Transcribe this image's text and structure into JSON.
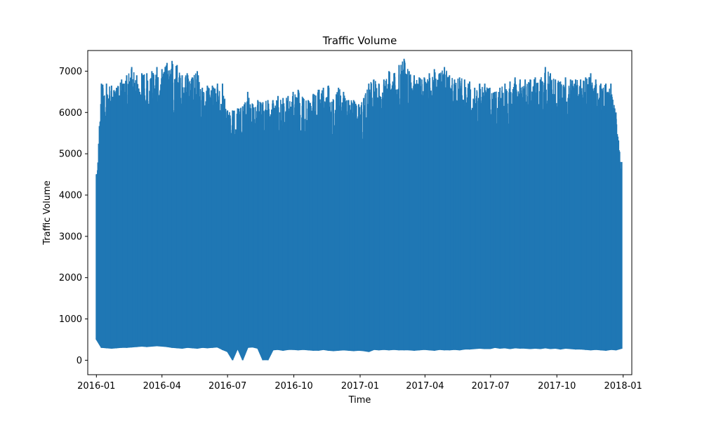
{
  "chart_data": {
    "type": "line",
    "title": "Traffic Volume",
    "xlabel": "Time",
    "ylabel": "Traffic Volume",
    "xlim": [
      "2015-12-20",
      "2018-01-13"
    ],
    "ylim": [
      -350,
      7500
    ],
    "grid": false,
    "x_ticks": [
      "2016-01",
      "2016-04",
      "2016-07",
      "2016-10",
      "2017-01",
      "2017-04",
      "2017-07",
      "2017-10",
      "2018-01"
    ],
    "y_ticks": [
      0,
      1000,
      2000,
      3000,
      4000,
      5000,
      6000,
      7000
    ],
    "series": [
      {
        "color": "#1f77b4",
        "sampling": "hourly readings, shown as approximate weekly envelope",
        "x": [
          "2016-01-01",
          "2016-01-08",
          "2016-01-15",
          "2016-01-22",
          "2016-01-29",
          "2016-02-05",
          "2016-02-12",
          "2016-02-19",
          "2016-02-26",
          "2016-03-04",
          "2016-03-11",
          "2016-03-18",
          "2016-03-25",
          "2016-04-01",
          "2016-04-08",
          "2016-04-15",
          "2016-04-22",
          "2016-04-29",
          "2016-05-06",
          "2016-05-13",
          "2016-05-20",
          "2016-05-27",
          "2016-06-03",
          "2016-06-10",
          "2016-06-17",
          "2016-06-24",
          "2016-07-01",
          "2016-07-08",
          "2016-07-15",
          "2016-07-22",
          "2016-07-29",
          "2016-08-05",
          "2016-08-12",
          "2016-08-19",
          "2016-08-26",
          "2016-09-02",
          "2016-09-09",
          "2016-09-16",
          "2016-09-23",
          "2016-09-30",
          "2016-10-07",
          "2016-10-14",
          "2016-10-21",
          "2016-10-28",
          "2016-11-04",
          "2016-11-11",
          "2016-11-18",
          "2016-11-25",
          "2016-12-02",
          "2016-12-09",
          "2016-12-16",
          "2016-12-23",
          "2016-12-30",
          "2017-01-06",
          "2017-01-13",
          "2017-01-20",
          "2017-01-27",
          "2017-02-03",
          "2017-02-10",
          "2017-02-17",
          "2017-02-24",
          "2017-03-03",
          "2017-03-10",
          "2017-03-17",
          "2017-03-24",
          "2017-03-31",
          "2017-04-07",
          "2017-04-14",
          "2017-04-21",
          "2017-04-28",
          "2017-05-05",
          "2017-05-12",
          "2017-05-19",
          "2017-05-26",
          "2017-06-02",
          "2017-06-09",
          "2017-06-16",
          "2017-06-23",
          "2017-06-30",
          "2017-07-07",
          "2017-07-14",
          "2017-07-21",
          "2017-07-28",
          "2017-08-04",
          "2017-08-11",
          "2017-08-18",
          "2017-08-25",
          "2017-09-01",
          "2017-09-08",
          "2017-09-15",
          "2017-09-22",
          "2017-09-29",
          "2017-10-06",
          "2017-10-13",
          "2017-10-20",
          "2017-10-27",
          "2017-11-03",
          "2017-11-10",
          "2017-11-17",
          "2017-11-24",
          "2017-12-01",
          "2017-12-08",
          "2017-12-15",
          "2017-12-22",
          "2017-12-30"
        ],
        "max": [
          4500,
          6700,
          6700,
          6650,
          6600,
          6800,
          6900,
          7100,
          6900,
          6950,
          6950,
          7000,
          7100,
          7050,
          7200,
          7250,
          7150,
          6900,
          6950,
          6850,
          7000,
          6600,
          6650,
          6650,
          6700,
          6700,
          6050,
          6050,
          6100,
          6150,
          6500,
          6200,
          6300,
          6250,
          6300,
          6300,
          6400,
          6350,
          6400,
          6500,
          6550,
          6350,
          6300,
          6450,
          6550,
          6600,
          6650,
          6300,
          6600,
          6500,
          6300,
          6300,
          6200,
          6350,
          6700,
          6800,
          6700,
          6800,
          7000,
          6950,
          7150,
          7300,
          7000,
          6900,
          6850,
          6850,
          6950,
          7050,
          6950,
          7100,
          6900,
          6800,
          6850,
          6800,
          6750,
          6600,
          6700,
          6700,
          6600,
          6500,
          6600,
          6700,
          6750,
          6850,
          6800,
          6800,
          6800,
          6850,
          6800,
          7100,
          6950,
          6800,
          6750,
          6850,
          6800,
          6800,
          6800,
          6850,
          6950,
          6800,
          6700,
          6700,
          6700,
          6000,
          4800
        ],
        "min": [
          500,
          300,
          290,
          280,
          290,
          300,
          300,
          310,
          320,
          330,
          320,
          330,
          340,
          330,
          320,
          300,
          290,
          280,
          300,
          290,
          280,
          300,
          290,
          300,
          310,
          250,
          200,
          0,
          280,
          0,
          300,
          310,
          280,
          0,
          0,
          240,
          250,
          230,
          250,
          250,
          240,
          250,
          240,
          230,
          230,
          250,
          230,
          220,
          230,
          240,
          230,
          220,
          230,
          220,
          200,
          250,
          240,
          250,
          240,
          250,
          240,
          240,
          240,
          230,
          240,
          250,
          240,
          230,
          250,
          240,
          240,
          250,
          240,
          260,
          260,
          270,
          280,
          270,
          270,
          300,
          280,
          290,
          270,
          290,
          280,
          280,
          270,
          280,
          270,
          290,
          270,
          280,
          260,
          280,
          270,
          260,
          260,
          250,
          240,
          250,
          240,
          230,
          250,
          240,
          280
        ]
      }
    ]
  }
}
